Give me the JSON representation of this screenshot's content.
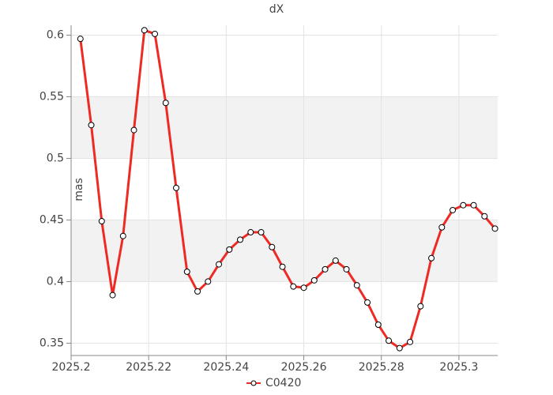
{
  "chart_data": {
    "type": "line",
    "title": "dX",
    "y_label": "mas",
    "x": [
      2025.2024,
      2025.2052,
      2025.2079,
      2025.2107,
      2025.2134,
      2025.2162,
      2025.2189,
      2025.2216,
      2025.2244,
      2025.2271,
      2025.2299,
      2025.2326,
      2025.2353,
      2025.2381,
      2025.2408,
      2025.2436,
      2025.2463,
      2025.249,
      2025.2518,
      2025.2545,
      2025.2573,
      2025.26,
      2025.2627,
      2025.2655,
      2025.2682,
      2025.271,
      2025.2737,
      2025.2764,
      2025.2792,
      2025.2819,
      2025.2847,
      2025.2874,
      2025.2901,
      2025.2929,
      2025.2956,
      2025.2984,
      2025.3011,
      2025.3038,
      2025.3066,
      2025.3093
    ],
    "series": [
      {
        "name": "C0420",
        "color": "#ee2a24",
        "values": [
          0.597,
          0.527,
          0.449,
          0.389,
          0.437,
          0.523,
          0.604,
          0.601,
          0.545,
          0.476,
          0.408,
          0.392,
          0.4,
          0.414,
          0.426,
          0.434,
          0.44,
          0.44,
          0.428,
          0.412,
          0.396,
          0.395,
          0.401,
          0.41,
          0.417,
          0.41,
          0.397,
          0.383,
          0.365,
          0.352,
          0.346,
          0.351,
          0.38,
          0.419,
          0.444,
          0.458,
          0.462,
          0.462,
          0.453,
          0.443
        ]
      }
    ],
    "xlim": [
      2025.2,
      2025.31
    ],
    "xticks": [
      2025.2,
      2025.22,
      2025.24,
      2025.26,
      2025.28,
      2025.3
    ],
    "ylim": [
      0.34,
      0.608
    ],
    "yticks": [
      0.35,
      0.4,
      0.45,
      0.5,
      0.55,
      0.6
    ],
    "grid": true,
    "legend": "bottom"
  }
}
